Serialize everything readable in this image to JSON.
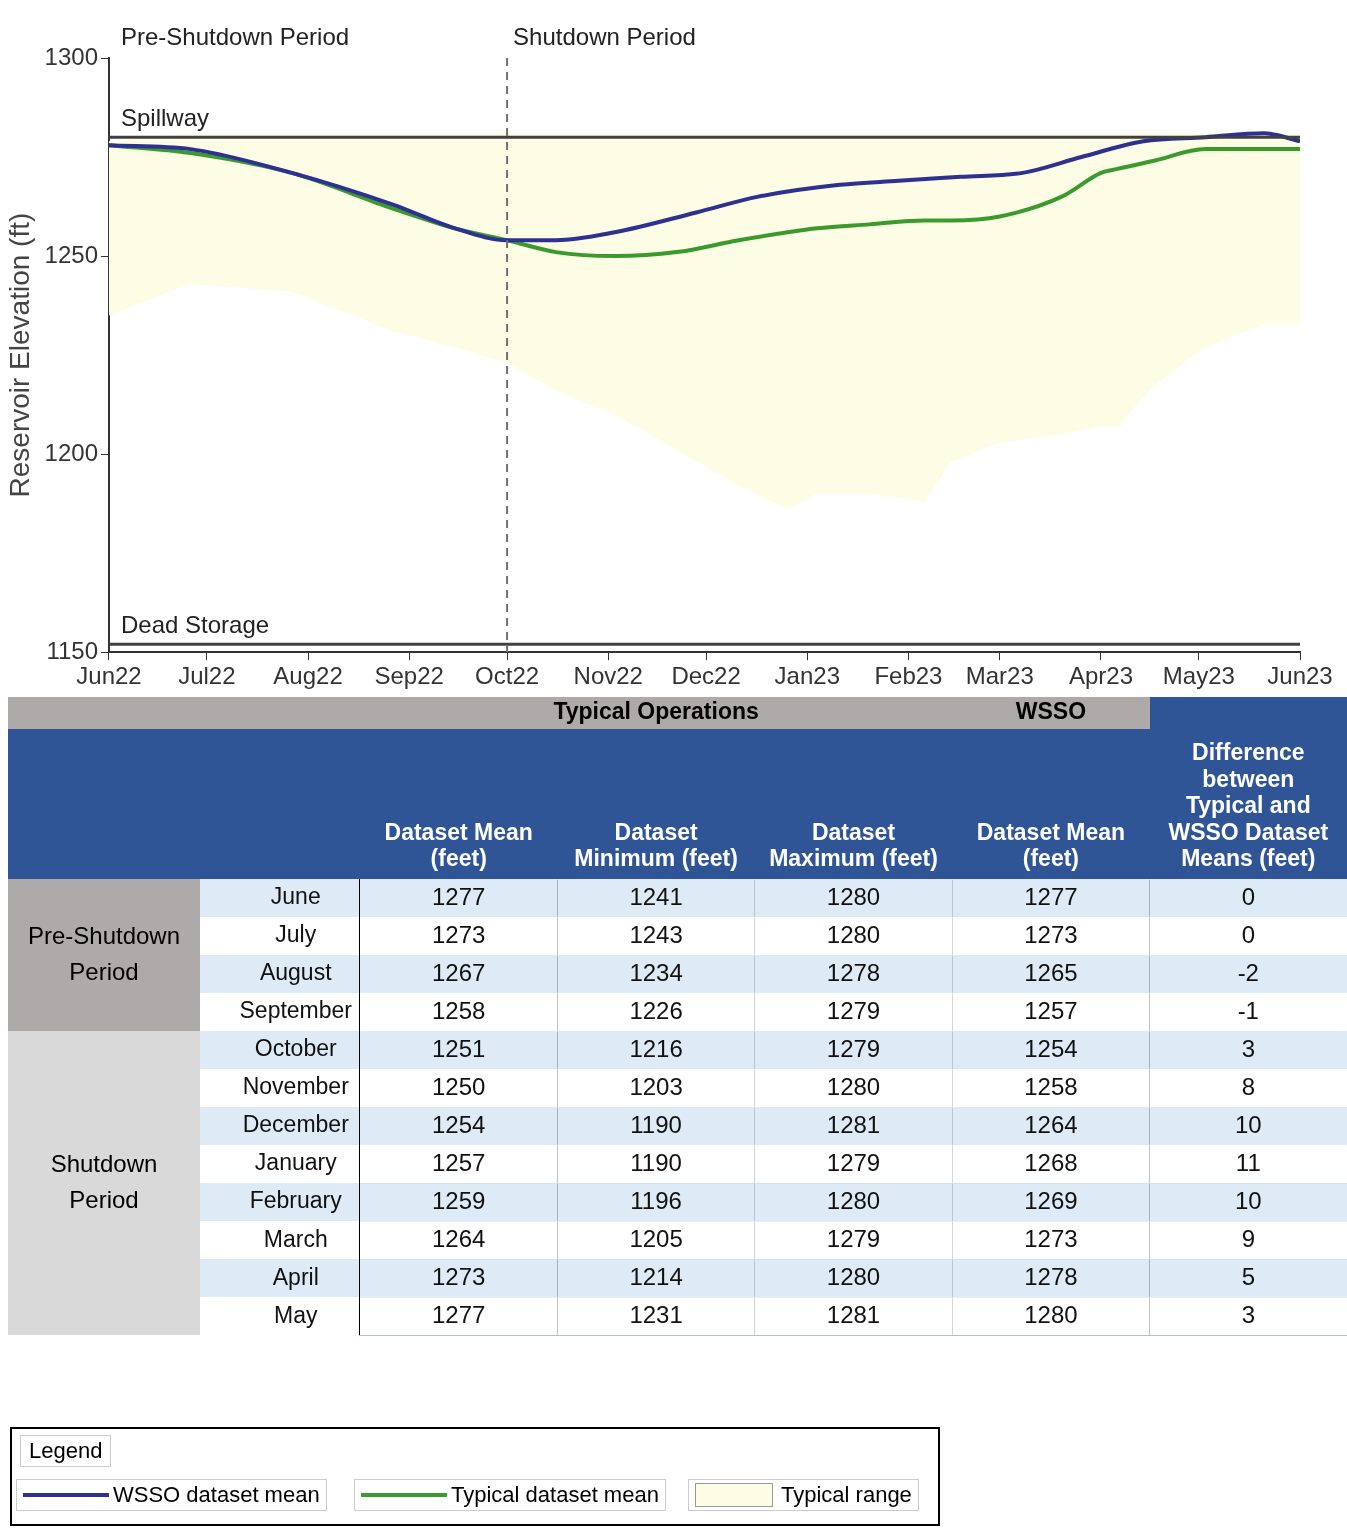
{
  "chart_data": [
    {
      "type": "line",
      "ylabel": "Reservoir Elevation (ft)",
      "legend_title": "Legend",
      "legend": "bottom",
      "grid": false,
      "marker": "none",
      "xlim": [
        "2022-06-01",
        "2023-06-01"
      ],
      "xticks": [
        {
          "value": "2022-06-01",
          "label": "Jun22"
        },
        {
          "value": "2022-07-01",
          "label": "Jul22"
        },
        {
          "value": "2022-08-01",
          "label": "Aug22"
        },
        {
          "value": "2022-09-01",
          "label": "Sep22"
        },
        {
          "value": "2022-10-01",
          "label": "Oct22"
        },
        {
          "value": "2022-11-01",
          "label": "Nov22"
        },
        {
          "value": "2022-12-01",
          "label": "Dec22"
        },
        {
          "value": "2023-01-01",
          "label": "Jan23"
        },
        {
          "value": "2023-02-01",
          "label": "Feb23"
        },
        {
          "value": "2023-03-01",
          "label": "Mar23"
        },
        {
          "value": "2023-04-01",
          "label": "Apr23"
        },
        {
          "value": "2023-05-01",
          "label": "May23"
        },
        {
          "value": "2023-06-01",
          "label": "Jun23"
        }
      ],
      "ylim": [
        1150,
        1300
      ],
      "yticks": [
        1150,
        1200,
        1250,
        1300
      ],
      "ref_lines": [
        {
          "axis": "y",
          "value": 1280,
          "label": "Spillway",
          "color": "#404040"
        },
        {
          "axis": "y",
          "value": 1152,
          "label": "Dead Storage",
          "color": "#404040"
        },
        {
          "axis": "x",
          "value": "2022-10-01",
          "color": "#707070",
          "line_style": "dashed"
        }
      ],
      "annotations": [
        "Pre-Shutdown Period",
        "Shutdown Period",
        "Typical range"
      ],
      "series": [
        {
          "name": "WSSO dataset mean",
          "type": "line",
          "color": "#2e3192",
          "x": [
            "2022-06-01",
            "2022-06-26",
            "2022-07-27",
            "2022-08-27",
            "2022-09-15",
            "2022-10-01",
            "2022-10-16",
            "2022-11-03",
            "2022-11-28",
            "2022-12-17",
            "2023-01-11",
            "2023-01-29",
            "2023-02-17",
            "2023-03-08",
            "2023-03-26",
            "2023-04-14",
            "2023-05-03",
            "2023-05-21",
            "2023-06-01"
          ],
          "values": [
            1278,
            1277,
            1271,
            1263,
            1257,
            1254,
            1254,
            1256,
            1261,
            1265,
            1268,
            1269,
            1270,
            1271,
            1275,
            1279,
            1280,
            1281,
            1279
          ]
        },
        {
          "name": "Typical dataset mean",
          "type": "line",
          "color": "#3a9a2e",
          "x": [
            "2022-06-01",
            "2022-06-26",
            "2022-07-27",
            "2022-08-27",
            "2022-09-15",
            "2022-10-01",
            "2022-10-16",
            "2022-11-03",
            "2022-11-22",
            "2022-12-11",
            "2022-12-26",
            "2023-01-04",
            "2023-01-20",
            "2023-02-06",
            "2023-02-14",
            "2023-03-01",
            "2023-03-20",
            "2023-04-01",
            "2023-04-06",
            "2023-04-17",
            "2023-05-03",
            "2023-05-21",
            "2023-06-01"
          ],
          "values": [
            1278,
            1276,
            1271,
            1262,
            1257,
            1254,
            1251,
            1250,
            1251,
            1254,
            1256,
            1257,
            1258,
            1259,
            1259,
            1260,
            1265,
            1271,
            1272,
            1274,
            1277,
            1277,
            1277
          ],
          "lower": [
            1235,
            1243,
            1241,
            1231,
            1227,
            1223,
            1216,
            1210,
            1201,
            1192,
            1186,
            1190,
            1190,
            1188,
            1198,
            1203,
            1205,
            1207,
            1207,
            1217,
            1227,
            1233,
            1233
          ],
          "upper": [
            1279,
            1281,
            1281,
            1281,
            1281,
            1281,
            1281,
            1281,
            1281,
            1281,
            1281,
            1281,
            1281,
            1281,
            1281,
            1281,
            1281,
            1281,
            1281,
            1281,
            1281,
            1281,
            1281
          ]
        }
      ]
    },
    {
      "type": "heatmap",
      "grid": true,
      "data_labels": true,
      "categories": [
        "Dataset Mean (feet)",
        "Dataset Minimum (feet)",
        "Dataset Maximum (feet)",
        "Dataset Mean (feet)",
        "Difference between Typical and WSSO Dataset Means (feet)"
      ],
      "y_categories": [
        "June",
        "July",
        "August",
        "September",
        "October",
        "November",
        "December",
        "January",
        "February",
        "March",
        "April",
        "May"
      ],
      "annotations": [
        "Typical Operations",
        "WSSO",
        "Pre-Shutdown Period",
        "Shutdown Period"
      ],
      "cells": [
        [
          1277,
          1241,
          1280,
          1277,
          0
        ],
        [
          1273,
          1243,
          1280,
          1273,
          0
        ],
        [
          1267,
          1234,
          1278,
          1265,
          -2
        ],
        [
          1258,
          1226,
          1279,
          1257,
          -1
        ],
        [
          1251,
          1216,
          1279,
          1254,
          3
        ],
        [
          1250,
          1203,
          1280,
          1258,
          8
        ],
        [
          1254,
          1190,
          1281,
          1264,
          10
        ],
        [
          1257,
          1190,
          1279,
          1268,
          11
        ],
        [
          1259,
          1196,
          1280,
          1269,
          10
        ],
        [
          1264,
          1205,
          1279,
          1273,
          9
        ],
        [
          1273,
          1214,
          1280,
          1278,
          5
        ],
        [
          1277,
          1231,
          1281,
          1280,
          3
        ]
      ]
    }
  ]
}
